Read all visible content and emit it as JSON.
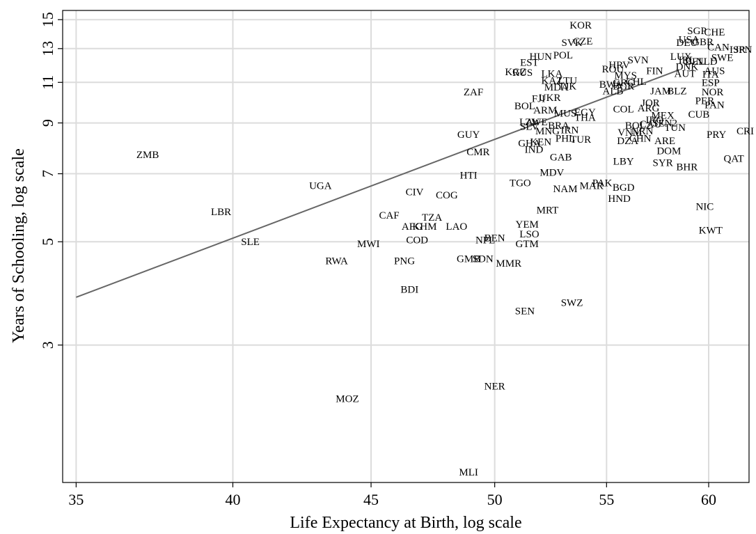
{
  "chart_data": {
    "type": "scatter",
    "xlabel": "Life Expectancy at Birth, log scale",
    "ylabel": "Years of Schooling, log scale",
    "x_scale": "log",
    "y_scale": "log",
    "xlim": [
      34.6,
      62.1
    ],
    "ylim": [
      1.52,
      15.7
    ],
    "x_ticks": [
      35,
      40,
      45,
      50,
      55,
      60
    ],
    "y_ticks": [
      3,
      5,
      7,
      9,
      11,
      13,
      15
    ],
    "grid": true,
    "fit_line": {
      "x": [
        35,
        58.5
      ],
      "y": [
        3.8,
        11.7
      ]
    },
    "points": [
      {
        "label": "ZMB",
        "x": 37.2,
        "y": 7.7
      },
      {
        "label": "UGA",
        "x": 43.1,
        "y": 6.6
      },
      {
        "label": "LBR",
        "x": 39.6,
        "y": 5.8
      },
      {
        "label": "SLE",
        "x": 40.6,
        "y": 5.0
      },
      {
        "label": "RWA",
        "x": 43.7,
        "y": 4.55
      },
      {
        "label": "MWI",
        "x": 44.9,
        "y": 4.95
      },
      {
        "label": "MOZ",
        "x": 44.1,
        "y": 2.3
      },
      {
        "label": "CAF",
        "x": 45.7,
        "y": 5.7
      },
      {
        "label": "PNG",
        "x": 46.3,
        "y": 4.55
      },
      {
        "label": "AFG",
        "x": 46.6,
        "y": 5.4
      },
      {
        "label": "KHM",
        "x": 47.1,
        "y": 5.4
      },
      {
        "label": "TZA",
        "x": 47.4,
        "y": 5.65
      },
      {
        "label": "COD",
        "x": 46.8,
        "y": 5.05
      },
      {
        "label": "CIV",
        "x": 46.7,
        "y": 6.4
      },
      {
        "label": "BDI",
        "x": 46.5,
        "y": 3.95
      },
      {
        "label": "COG",
        "x": 48.0,
        "y": 6.3
      },
      {
        "label": "LAO",
        "x": 48.4,
        "y": 5.4
      },
      {
        "label": "HTI",
        "x": 48.9,
        "y": 6.95
      },
      {
        "label": "GUY",
        "x": 48.9,
        "y": 8.5
      },
      {
        "label": "ZAF",
        "x": 49.1,
        "y": 10.5
      },
      {
        "label": "CMR",
        "x": 49.3,
        "y": 7.8
      },
      {
        "label": "NPL",
        "x": 49.6,
        "y": 5.05
      },
      {
        "label": "BEN",
        "x": 50.0,
        "y": 5.1
      },
      {
        "label": "GMB",
        "x": 48.9,
        "y": 4.6
      },
      {
        "label": "SDN",
        "x": 49.5,
        "y": 4.6
      },
      {
        "label": "MMR",
        "x": 50.6,
        "y": 4.5
      },
      {
        "label": "MLI",
        "x": 48.9,
        "y": 1.6
      },
      {
        "label": "NER",
        "x": 50.0,
        "y": 2.45
      },
      {
        "label": "SEN",
        "x": 51.3,
        "y": 3.55
      },
      {
        "label": "SWZ",
        "x": 53.4,
        "y": 3.7
      },
      {
        "label": "TGO",
        "x": 51.1,
        "y": 6.7
      },
      {
        "label": "YEM",
        "x": 51.4,
        "y": 5.45
      },
      {
        "label": "LSO",
        "x": 51.5,
        "y": 5.2
      },
      {
        "label": "GTM",
        "x": 51.4,
        "y": 4.95
      },
      {
        "label": "MRT",
        "x": 52.3,
        "y": 5.85
      },
      {
        "label": "MDV",
        "x": 52.5,
        "y": 7.05
      },
      {
        "label": "NAM",
        "x": 53.1,
        "y": 6.5
      },
      {
        "label": "GAB",
        "x": 52.9,
        "y": 7.6
      },
      {
        "label": "MAR",
        "x": 54.3,
        "y": 6.6
      },
      {
        "label": "PAK",
        "x": 54.8,
        "y": 6.7
      },
      {
        "label": "BGD",
        "x": 55.8,
        "y": 6.55
      },
      {
        "label": "HND",
        "x": 55.6,
        "y": 6.2
      },
      {
        "label": "LBY",
        "x": 55.8,
        "y": 7.45
      },
      {
        "label": "KOR",
        "x": 53.8,
        "y": 14.6
      },
      {
        "label": "CZE",
        "x": 53.9,
        "y": 13.5
      },
      {
        "label": "SVK",
        "x": 53.4,
        "y": 13.4
      },
      {
        "label": "POL",
        "x": 53.0,
        "y": 12.6
      },
      {
        "label": "HUN",
        "x": 52.0,
        "y": 12.5
      },
      {
        "label": "EST",
        "x": 51.5,
        "y": 12.15
      },
      {
        "label": "KGZ",
        "x": 50.9,
        "y": 11.6
      },
      {
        "label": "RUS",
        "x": 51.2,
        "y": 11.55
      },
      {
        "label": "LKA",
        "x": 52.5,
        "y": 11.5
      },
      {
        "label": "KAZ",
        "x": 52.5,
        "y": 11.1
      },
      {
        "label": "LTU",
        "x": 53.2,
        "y": 11.1
      },
      {
        "label": "MDA",
        "x": 52.7,
        "y": 10.75
      },
      {
        "label": "TJK",
        "x": 53.2,
        "y": 10.8
      },
      {
        "label": "UKR",
        "x": 52.4,
        "y": 10.2
      },
      {
        "label": "FJI",
        "x": 51.9,
        "y": 10.15
      },
      {
        "label": "BOL",
        "x": 51.3,
        "y": 9.8
      },
      {
        "label": "ARM",
        "x": 52.2,
        "y": 9.6
      },
      {
        "label": "MUS",
        "x": 53.1,
        "y": 9.45
      },
      {
        "label": "EGY",
        "x": 54.0,
        "y": 9.5
      },
      {
        "label": "THA",
        "x": 54.0,
        "y": 9.25
      },
      {
        "label": "LAV",
        "x": 51.5,
        "y": 9.05
      },
      {
        "label": "ZWE",
        "x": 51.8,
        "y": 9.05
      },
      {
        "label": "SLV",
        "x": 51.5,
        "y": 8.85
      },
      {
        "label": "MNG",
        "x": 52.3,
        "y": 8.65
      },
      {
        "label": "BRA",
        "x": 52.8,
        "y": 8.9
      },
      {
        "label": "IRN",
        "x": 53.3,
        "y": 8.7
      },
      {
        "label": "PHL",
        "x": 53.1,
        "y": 8.35
      },
      {
        "label": "TUR",
        "x": 53.8,
        "y": 8.3
      },
      {
        "label": "GHA",
        "x": 51.5,
        "y": 8.15
      },
      {
        "label": "KEN",
        "x": 52.0,
        "y": 8.2
      },
      {
        "label": "IND",
        "x": 51.7,
        "y": 7.9
      },
      {
        "label": "HRV",
        "x": 55.6,
        "y": 12.0
      },
      {
        "label": "SVN",
        "x": 56.5,
        "y": 12.3
      },
      {
        "label": "ROU",
        "x": 55.3,
        "y": 11.75
      },
      {
        "label": "MYS",
        "x": 55.9,
        "y": 11.4
      },
      {
        "label": "BWA",
        "x": 55.2,
        "y": 10.9
      },
      {
        "label": "GRC",
        "x": 55.8,
        "y": 11.0
      },
      {
        "label": "CHL",
        "x": 56.4,
        "y": 11.05
      },
      {
        "label": "ALB",
        "x": 55.3,
        "y": 10.55
      },
      {
        "label": "BGR",
        "x": 55.8,
        "y": 10.8
      },
      {
        "label": "FIN",
        "x": 57.3,
        "y": 11.65
      },
      {
        "label": "JAM",
        "x": 57.6,
        "y": 10.55
      },
      {
        "label": "BLZ",
        "x": 58.4,
        "y": 10.55
      },
      {
        "label": "COL",
        "x": 55.8,
        "y": 9.65
      },
      {
        "label": "JOR",
        "x": 57.1,
        "y": 9.95
      },
      {
        "label": "ARG",
        "x": 57.0,
        "y": 9.7
      },
      {
        "label": "MEX",
        "x": 57.7,
        "y": 9.35
      },
      {
        "label": "IRQ",
        "x": 57.3,
        "y": 9.15
      },
      {
        "label": "BOL2",
        "x": 56.5,
        "y": 8.9
      },
      {
        "label": "CAU",
        "x": 57.1,
        "y": 8.95
      },
      {
        "label": "SEN2",
        "x": 57.8,
        "y": 9.0
      },
      {
        "label": "VNM",
        "x": 56.1,
        "y": 8.6
      },
      {
        "label": "NRN",
        "x": 56.7,
        "y": 8.65
      },
      {
        "label": "CHN",
        "x": 56.6,
        "y": 8.35
      },
      {
        "label": "DZA",
        "x": 56.0,
        "y": 8.25
      },
      {
        "label": "TUN",
        "x": 58.3,
        "y": 8.8
      },
      {
        "label": "ARE",
        "x": 57.8,
        "y": 8.25
      },
      {
        "label": "DOM",
        "x": 58.0,
        "y": 7.85
      },
      {
        "label": "SYR",
        "x": 57.7,
        "y": 7.4
      },
      {
        "label": "BHR",
        "x": 58.9,
        "y": 7.25
      },
      {
        "label": "SGP",
        "x": 59.4,
        "y": 14.2
      },
      {
        "label": "CHE",
        "x": 60.3,
        "y": 14.1
      },
      {
        "label": "USA",
        "x": 59.0,
        "y": 13.6
      },
      {
        "label": "DEU",
        "x": 58.9,
        "y": 13.4
      },
      {
        "label": "GBR",
        "x": 59.7,
        "y": 13.45
      },
      {
        "label": "CAN",
        "x": 60.5,
        "y": 13.1
      },
      {
        "label": "ISR",
        "x": 61.5,
        "y": 12.95
      },
      {
        "label": "JPN",
        "x": 61.8,
        "y": 12.95
      },
      {
        "label": "LUX",
        "x": 58.6,
        "y": 12.5
      },
      {
        "label": "IRL",
        "x": 58.9,
        "y": 12.3
      },
      {
        "label": "BEL",
        "x": 59.3,
        "y": 12.2
      },
      {
        "label": "NLD",
        "x": 59.9,
        "y": 12.2
      },
      {
        "label": "SWE",
        "x": 60.7,
        "y": 12.45
      },
      {
        "label": "AUS",
        "x": 60.3,
        "y": 11.65
      },
      {
        "label": "ITA",
        "x": 60.1,
        "y": 11.45
      },
      {
        "label": "AUT",
        "x": 58.8,
        "y": 11.5
      },
      {
        "label": "DNK",
        "x": 58.9,
        "y": 11.9
      },
      {
        "label": "ESP",
        "x": 60.1,
        "y": 11.0
      },
      {
        "label": "NOR",
        "x": 60.2,
        "y": 10.5
      },
      {
        "label": "PER",
        "x": 59.8,
        "y": 10.05
      },
      {
        "label": "PAN",
        "x": 60.3,
        "y": 9.85
      },
      {
        "label": "CUB",
        "x": 59.5,
        "y": 9.4
      },
      {
        "label": "PRY",
        "x": 60.4,
        "y": 8.5
      },
      {
        "label": "CRI",
        "x": 61.9,
        "y": 8.65
      },
      {
        "label": "QAT",
        "x": 61.3,
        "y": 7.55
      },
      {
        "label": "NIC",
        "x": 59.8,
        "y": 5.95
      },
      {
        "label": "KWT",
        "x": 60.1,
        "y": 5.3
      }
    ]
  }
}
